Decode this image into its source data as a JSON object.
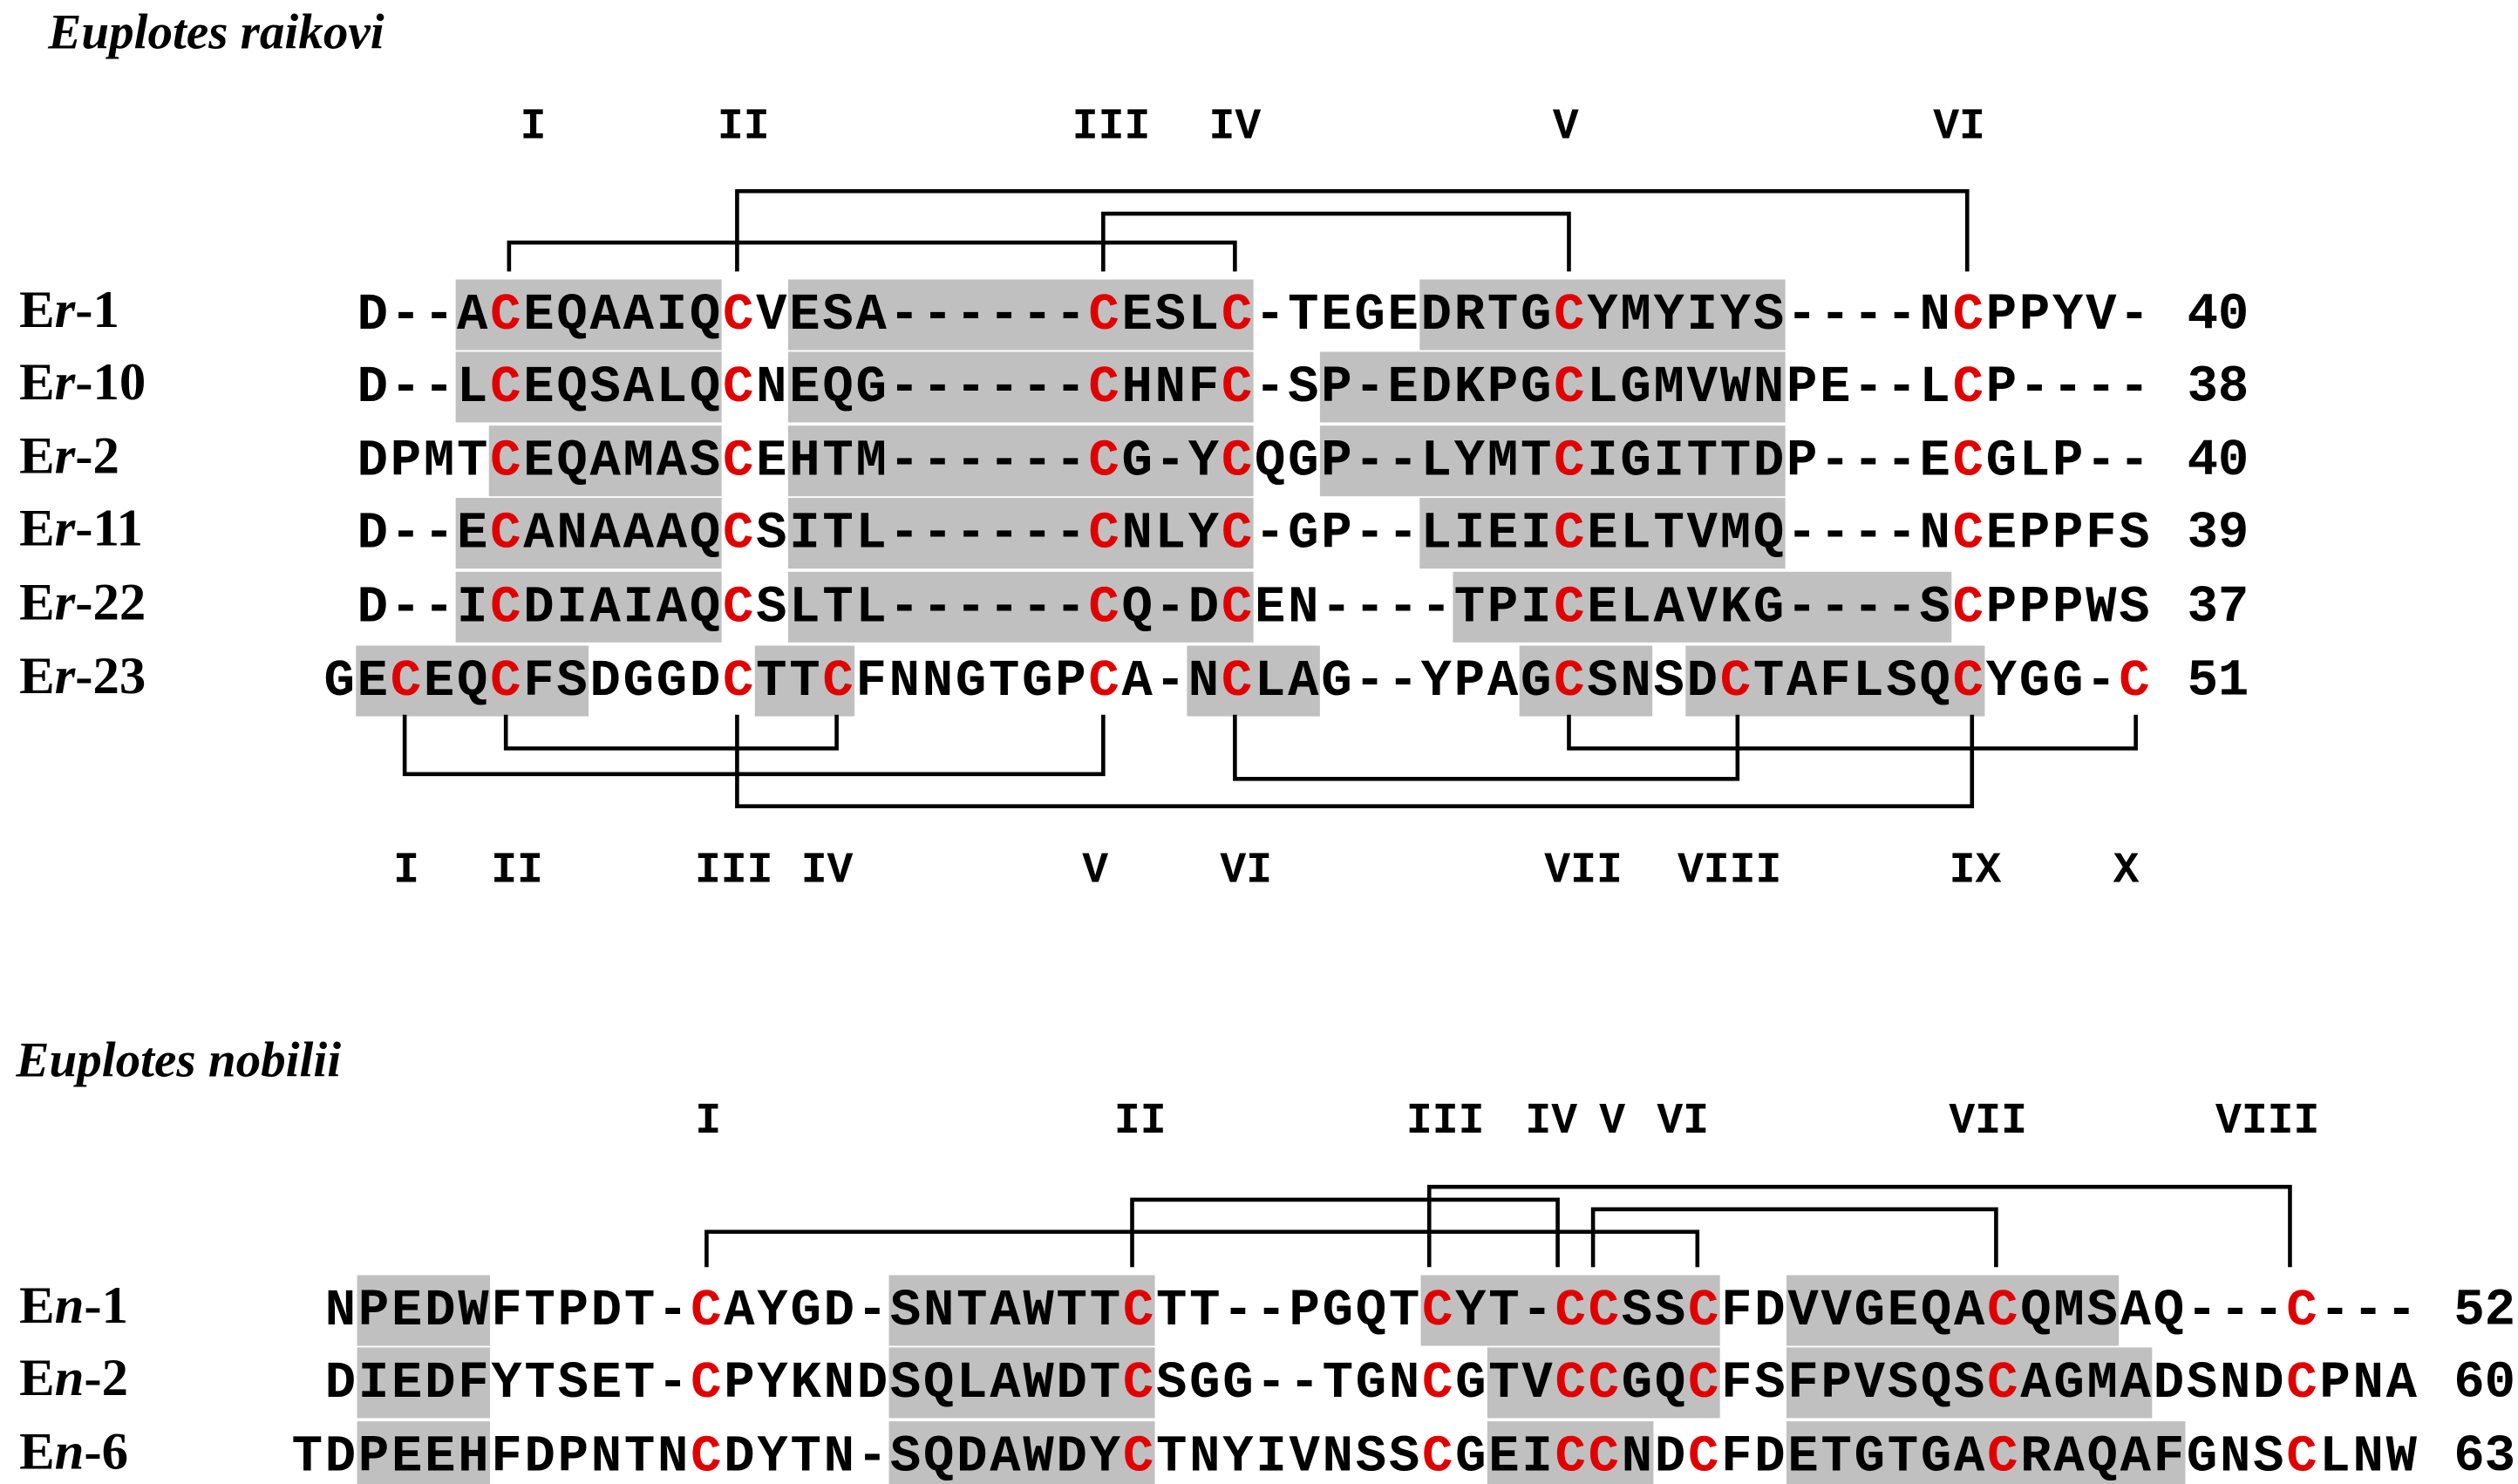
{
  "sections": [
    {
      "title": "Euplotes raikovi",
      "top_labels": [
        "I",
        "II",
        "III",
        "IV",
        "V",
        "VI"
      ],
      "rows": [
        {
          "name": "Er-1",
          "sequence": "D--ACEQAAIQCVESA------CESLC-TEGEDRTGCYMYIYS----NCPPYV-",
          "length": 40
        },
        {
          "name": "Er-10",
          "sequence": "D--LCEQSALQCNEQG------CHNFC-SP-EDKPGCLGMVWNPE--LCP----",
          "length": 38
        },
        {
          "name": "Er-2",
          "sequence": "DPMTCEQAMASCEHTM------CG-YCQGP--LYMTCIGITTDP---ECGLP--",
          "length": 40
        },
        {
          "name": "Er-11",
          "sequence": "D--ECANAAAQCSITL------CNLYC-GP--LIEICELTVMQ----NCEPPFS",
          "length": 39
        },
        {
          "name": "Er-22",
          "sequence": "D--ICDIAIAQCSLTL------CQ-DCEN----TPICELAVKG----SCPPPWS",
          "length": 37
        },
        {
          "name": "Er-23",
          "sequence": "GECEQCFSDGGDCTTCFNNGTGPCA-NCLAG--YPAGCSNSDCTAFLSQCYGG-C",
          "length": 51
        }
      ],
      "bottom_labels": [
        "I",
        "II",
        "III",
        "IV",
        "V",
        "VI",
        "VII",
        "VIII",
        "IX",
        "X"
      ]
    },
    {
      "title": "Euplotes nobilii",
      "top_labels": [
        "I",
        "II",
        "III",
        "IV",
        "V",
        "VI",
        "VII",
        "VIII"
      ],
      "rows": [
        {
          "name": "En-1",
          "sequence": "NPEDWFTPDT-CAYGD-SNTAWTTCTT--PGQTCYT-CCSSCFDVVGEQACQMSAQ---C---",
          "length": 52
        },
        {
          "name": "En-2",
          "sequence": "DIEDFYTSET-CPYKNDSQLAWDTCSGG--TGNCGTVCCGQCFSFPVSQSCAGMADSNDCPNA",
          "length": 60
        },
        {
          "name": "En-6",
          "sequence": "TDPEEHFDPNTNCDYTN-SQDAWDYCTNYIVNSSCGEICCNDCFDETGTGACRAQAFGNSCLNW",
          "length": 63
        }
      ]
    }
  ]
}
